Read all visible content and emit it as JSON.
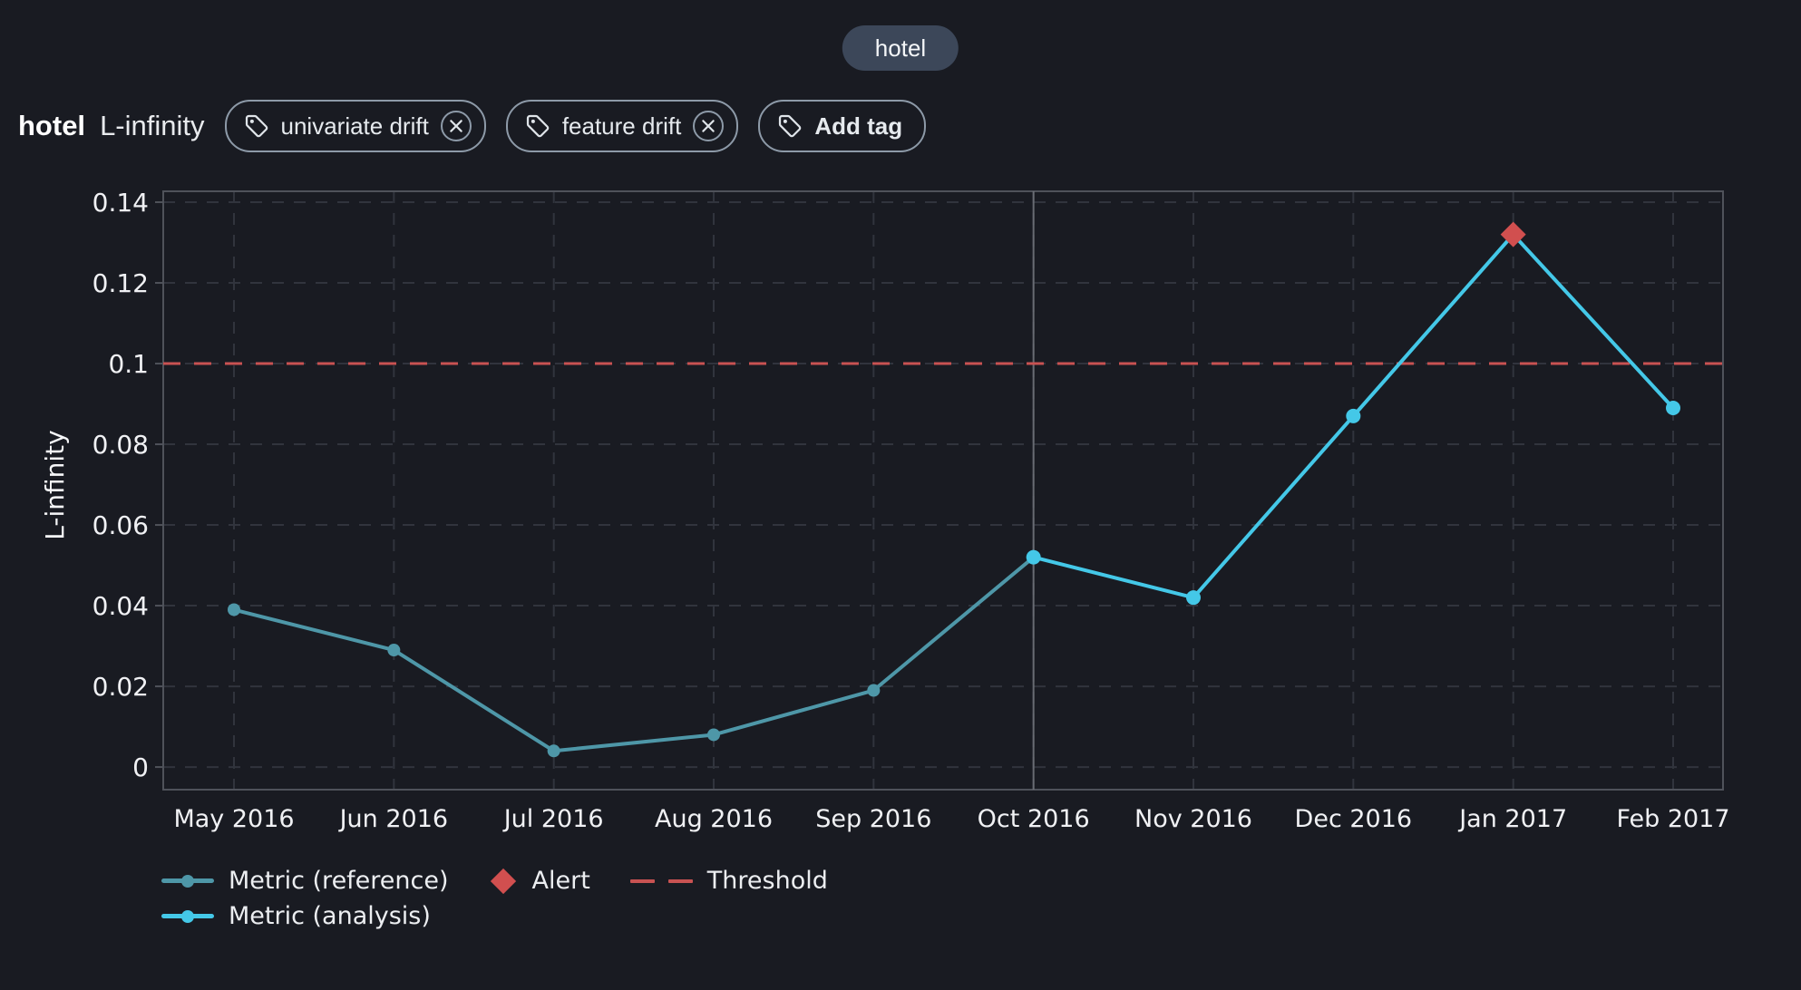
{
  "window": {
    "background": "#191b22"
  },
  "header": {
    "pill_label": "hotel"
  },
  "title": {
    "name": "hotel",
    "metric": "L-infinity"
  },
  "tags": {
    "items": [
      {
        "label": "univariate drift"
      },
      {
        "label": "feature drift"
      }
    ],
    "add_label": "Add tag"
  },
  "chart_data": {
    "type": "line",
    "ylabel": "L-infinity",
    "x_categories": [
      "May 2016",
      "Jun 2016",
      "Jul 2016",
      "Aug 2016",
      "Sep 2016",
      "Oct 2016",
      "Nov 2016",
      "Dec 2016",
      "Jan 2017",
      "Feb 2017"
    ],
    "y_ticks": [
      {
        "label": "0",
        "value": 0
      },
      {
        "label": "0.02",
        "value": 0.02
      },
      {
        "label": "0.04",
        "value": 0.04
      },
      {
        "label": "0.06",
        "value": 0.06
      },
      {
        "label": "0.08",
        "value": 0.08
      },
      {
        "label": "0.1",
        "value": 0.1
      },
      {
        "label": "0.12",
        "value": 0.12
      },
      {
        "label": "0.14",
        "value": 0.14
      }
    ],
    "ylim_displayed": [
      -0.0056,
      0.1427
    ],
    "grid": true,
    "legend_position": "bottom-left",
    "series": [
      {
        "name": "Metric (reference)",
        "color": "#4e97a8",
        "x": [
          "May 2016",
          "Jun 2016",
          "Jul 2016",
          "Aug 2016",
          "Sep 2016",
          "Oct 2016"
        ],
        "values": [
          0.039,
          0.029,
          0.004,
          0.008,
          0.019,
          0.052
        ]
      },
      {
        "name": "Metric (analysis)",
        "color": "#44c8e8",
        "x": [
          "Oct 2016",
          "Nov 2016",
          "Dec 2016",
          "Jan 2017",
          "Feb 2017"
        ],
        "values": [
          0.052,
          0.042,
          0.087,
          0.132,
          0.089
        ]
      }
    ],
    "threshold": {
      "label": "Threshold",
      "value": 0.1,
      "color": "#c85252"
    },
    "alerts": [
      {
        "label": "Alert",
        "x": "Jan 2017",
        "value": 0.132,
        "color": "#d14f4f"
      }
    ],
    "separator_x": "Oct 2016",
    "colors": {
      "grid": "#31343d",
      "frame": "#4f525a",
      "separator": "#70737a"
    }
  }
}
